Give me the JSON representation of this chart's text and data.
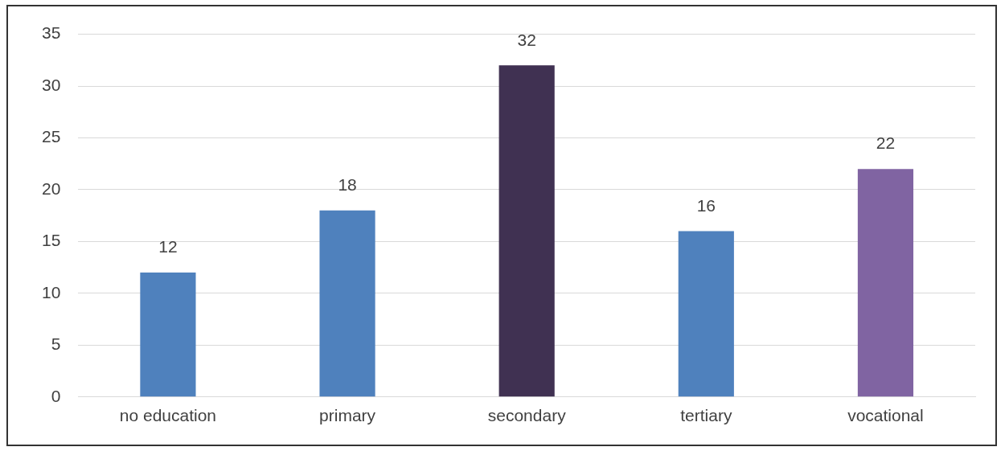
{
  "chart_data": {
    "type": "bar",
    "categories": [
      "no education",
      "primary",
      "secondary",
      "tertiary",
      "vocational"
    ],
    "values": [
      12,
      18,
      32,
      16,
      22
    ],
    "colors": [
      "#4f81bd",
      "#4f81bd",
      "#403152",
      "#4f81bd",
      "#8064a2"
    ],
    "ylim": [
      0,
      35
    ],
    "yticks": [
      0,
      5,
      10,
      15,
      20,
      25,
      30,
      35
    ],
    "grid": "y",
    "data_labels": true,
    "legend": false
  }
}
